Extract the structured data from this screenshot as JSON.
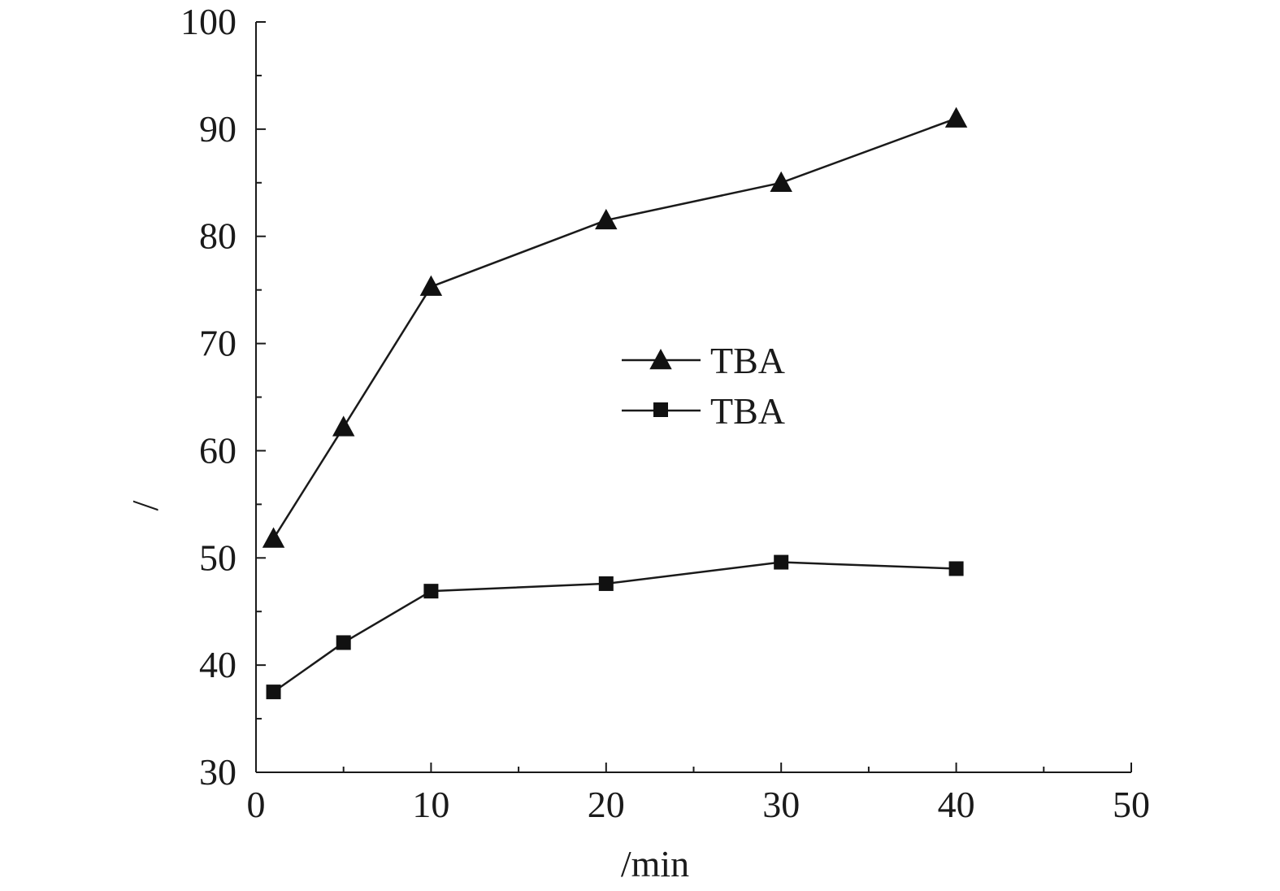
{
  "chart_data": {
    "type": "line",
    "title": "",
    "xlabel": "/min",
    "ylabel": "/",
    "xlim": [
      0,
      50
    ],
    "ylim": [
      30,
      100
    ],
    "xticks": [
      0,
      10,
      20,
      30,
      40,
      50
    ],
    "yticks": [
      30,
      40,
      50,
      60,
      70,
      80,
      90,
      100
    ],
    "grid": false,
    "legend_position": "center",
    "series": [
      {
        "name": "TBA",
        "marker": "triangle",
        "color": "#111111",
        "x": [
          1,
          5,
          10,
          20,
          30,
          40
        ],
        "y": [
          51.8,
          62.2,
          75.3,
          81.5,
          85.0,
          91.0
        ]
      },
      {
        "name": "TBA",
        "marker": "square",
        "color": "#111111",
        "x": [
          1,
          5,
          10,
          20,
          30,
          40
        ],
        "y": [
          37.5,
          42.1,
          46.9,
          47.6,
          49.6,
          49.0
        ]
      }
    ]
  }
}
